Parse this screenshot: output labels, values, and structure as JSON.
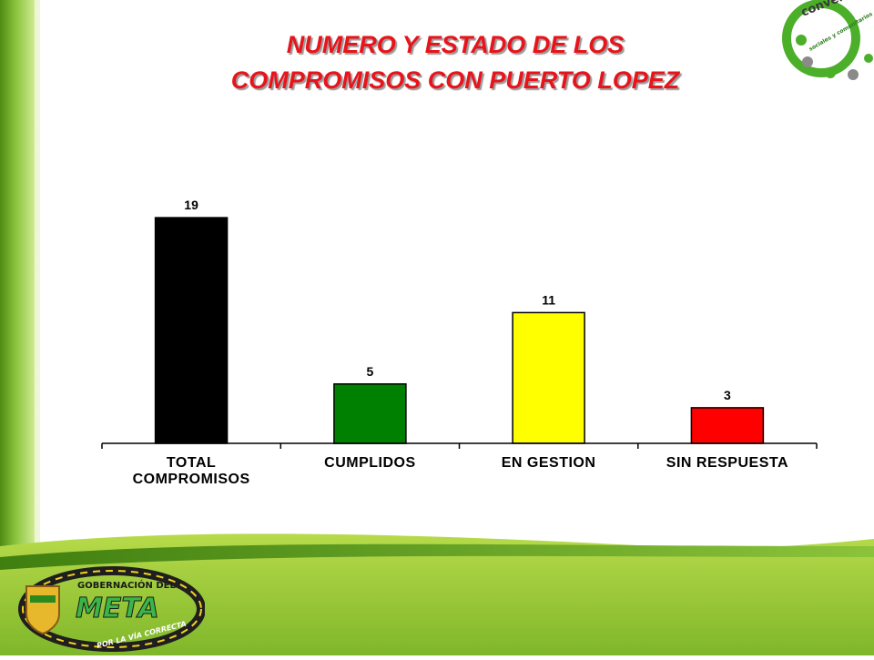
{
  "slide": {
    "title_line_1": "NUMERO Y ESTADO DE LOS",
    "title_line_2": "COMPROMISOS CON PUERTO LOPEZ"
  },
  "logos": {
    "top_right": {
      "word": "conversatorios",
      "subtitle": "sociales y comunitarios",
      "icon": "circle-cluster-logo"
    },
    "bottom_left": {
      "line_1": "GOBERNACIÓN DEL",
      "line_2": "META",
      "line_3": "POR LA VÍA CORRECTA",
      "icon": "coat-of-arms-logo"
    }
  },
  "colors": {
    "title": "#e8141b",
    "green_dark": "#5a9a18",
    "green_light": "#a7d13a"
  },
  "chart_data": {
    "type": "bar",
    "title": "",
    "xlabel": "",
    "ylabel": "",
    "categories": [
      [
        "TOTAL",
        "COMPROMISOS"
      ],
      [
        "CUMPLIDOS"
      ],
      [
        "EN GESTION"
      ],
      [
        "SIN RESPUESTA"
      ]
    ],
    "values": [
      19,
      5,
      11,
      3
    ],
    "bar_colors": [
      "#000000",
      "#008000",
      "#ffff00",
      "#ff0000"
    ],
    "ylim": [
      0,
      20
    ],
    "grid": false,
    "legend": "none",
    "data_labels": true
  }
}
